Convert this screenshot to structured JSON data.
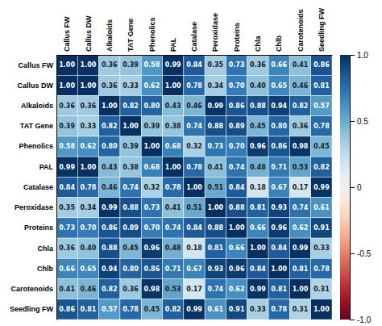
{
  "chart_data": {
    "type": "heatmap",
    "categories": [
      "Callus FW",
      "Callus DW",
      "Alkaloids",
      "TAT Gene",
      "Phenolics",
      "PAL",
      "Catalase",
      "Peroxidase",
      "Proteins",
      "Chla",
      "Chlb",
      "Carotenoids",
      "Seedling FW"
    ],
    "values": [
      [
        1.0,
        1.0,
        0.36,
        0.39,
        0.58,
        0.99,
        0.84,
        0.35,
        0.73,
        0.36,
        0.66,
        0.41,
        0.86
      ],
      [
        1.0,
        1.0,
        0.36,
        0.33,
        0.62,
        1.0,
        0.78,
        0.34,
        0.7,
        0.4,
        0.65,
        0.46,
        0.81
      ],
      [
        0.36,
        0.36,
        1.0,
        0.82,
        0.8,
        0.43,
        0.46,
        0.99,
        0.86,
        0.88,
        0.94,
        0.82,
        0.57
      ],
      [
        0.39,
        0.33,
        0.82,
        1.0,
        0.39,
        0.38,
        0.74,
        0.88,
        0.89,
        0.45,
        0.8,
        0.36,
        0.78
      ],
      [
        0.58,
        0.62,
        0.8,
        0.39,
        1.0,
        0.68,
        0.32,
        0.73,
        0.7,
        0.96,
        0.86,
        0.98,
        0.45
      ],
      [
        0.99,
        1.0,
        0.43,
        0.38,
        0.68,
        1.0,
        0.78,
        0.41,
        0.74,
        0.48,
        0.71,
        0.53,
        0.82
      ],
      [
        0.84,
        0.78,
        0.46,
        0.74,
        0.32,
        0.78,
        1.0,
        0.51,
        0.84,
        0.18,
        0.67,
        0.17,
        0.99
      ],
      [
        0.35,
        0.34,
        0.99,
        0.88,
        0.73,
        0.41,
        0.51,
        1.0,
        0.88,
        0.81,
        0.93,
        0.74,
        0.61
      ],
      [
        0.73,
        0.7,
        0.86,
        0.89,
        0.7,
        0.74,
        0.84,
        0.88,
        1.0,
        0.66,
        0.96,
        0.62,
        0.91
      ],
      [
        0.36,
        0.4,
        0.88,
        0.45,
        0.96,
        0.48,
        0.18,
        0.81,
        0.66,
        1.0,
        0.84,
        0.99,
        0.33
      ],
      [
        0.66,
        0.65,
        0.94,
        0.8,
        0.86,
        0.71,
        0.67,
        0.93,
        0.96,
        0.84,
        1.0,
        0.81,
        0.78
      ],
      [
        0.41,
        0.46,
        0.82,
        0.36,
        0.98,
        0.53,
        0.17,
        0.74,
        0.62,
        0.99,
        0.81,
        1.0,
        0.31
      ],
      [
        0.86,
        0.81,
        0.57,
        0.78,
        0.45,
        0.82,
        0.99,
        0.61,
        0.91,
        0.33,
        0.78,
        0.31,
        1.0
      ]
    ],
    "value_labels": [
      [
        "1.00",
        "1.00",
        "0.36",
        "0.39",
        "0.58",
        "0.99",
        "0.84",
        "0.35",
        "0.73",
        "0.36",
        "0.66",
        "0.41",
        "0.86"
      ],
      [
        "1.00",
        "1.00",
        "0.36",
        "0.33",
        "0.62",
        "1.00",
        "0.78",
        "0.34",
        "0.70",
        "0.40",
        "0.65",
        "0.46",
        "0.81"
      ],
      [
        "0.36",
        "0.36",
        "1.00",
        "0.82",
        "0.80",
        "0.43",
        "0.46",
        "0.99",
        "0.86",
        "0.88",
        "0.94",
        "0.82",
        "0.57"
      ],
      [
        "0.39",
        "0.33",
        "0.82",
        "1.00",
        "0.39",
        "0.38",
        "0.74",
        "0.88",
        "0.89",
        "0.45",
        "0.80",
        "0.36",
        "0.78"
      ],
      [
        "0.58",
        "0.62",
        "0.80",
        "0.39",
        "1.00",
        "0.68",
        "0.32",
        "0.73",
        "0.70",
        "0.96",
        "0.86",
        "0.98",
        "0.45"
      ],
      [
        "0.99",
        "1.00",
        "0.43",
        "0.38",
        "0.68",
        "1.00",
        "0.78",
        "0.41",
        "0.74",
        "0.48",
        "0.71",
        "0.53",
        "0.82"
      ],
      [
        "0.84",
        "0.78",
        "0.46",
        "0.74",
        "0.32",
        "0.78",
        "1.00",
        "0.51",
        "0.84",
        "0.18",
        "0.67",
        "0.17",
        "0.99"
      ],
      [
        "0.35",
        "0.34",
        "0.99",
        "0.88",
        "0.73",
        "0.41",
        "0.51",
        "1.00",
        "0.88",
        "0.81",
        "0.93",
        "0.74",
        "0.61"
      ],
      [
        "0.73",
        "0.70",
        "0.86",
        "0.89",
        "0.70",
        "0.74",
        "0.84",
        "0.88",
        "1.00",
        "0.66",
        "0.96",
        "0.62",
        "0.91"
      ],
      [
        "0.36",
        "0.40",
        "0.88",
        "0.45",
        "0.96",
        "0.48",
        "0.18",
        "0.81",
        "0.66",
        "1.00",
        "0.84",
        "0.99",
        "0.33"
      ],
      [
        "0.66",
        "0.65",
        "0.94",
        "0.80",
        "0.86",
        "0.71",
        "0.67",
        "0.93",
        "0.96",
        "0.84",
        "1.00",
        "0.81",
        "0.78"
      ],
      [
        "0.41",
        "0.46",
        "0.82",
        "0.36",
        "0.98",
        "0.53",
        "0.17",
        "0.74",
        "0.62",
        "0.99",
        "0.81",
        "1.00",
        "0.31"
      ],
      [
        "0.86",
        "0.81",
        "0.57",
        "0.78",
        "0.45",
        "0.82",
        "0.99",
        "0.61",
        "0.91",
        "0.33",
        "0.78",
        "0.31",
        "1.00"
      ]
    ],
    "data_labels": true,
    "colorbar_range": [
      -1.0,
      1.0
    ],
    "colorbar_ticks": [
      {
        "value": 1.0,
        "label": "1.0"
      },
      0.5,
      0,
      -0.5,
      {
        "value": -1.0,
        "label": "-1.0"
      }
    ]
  }
}
